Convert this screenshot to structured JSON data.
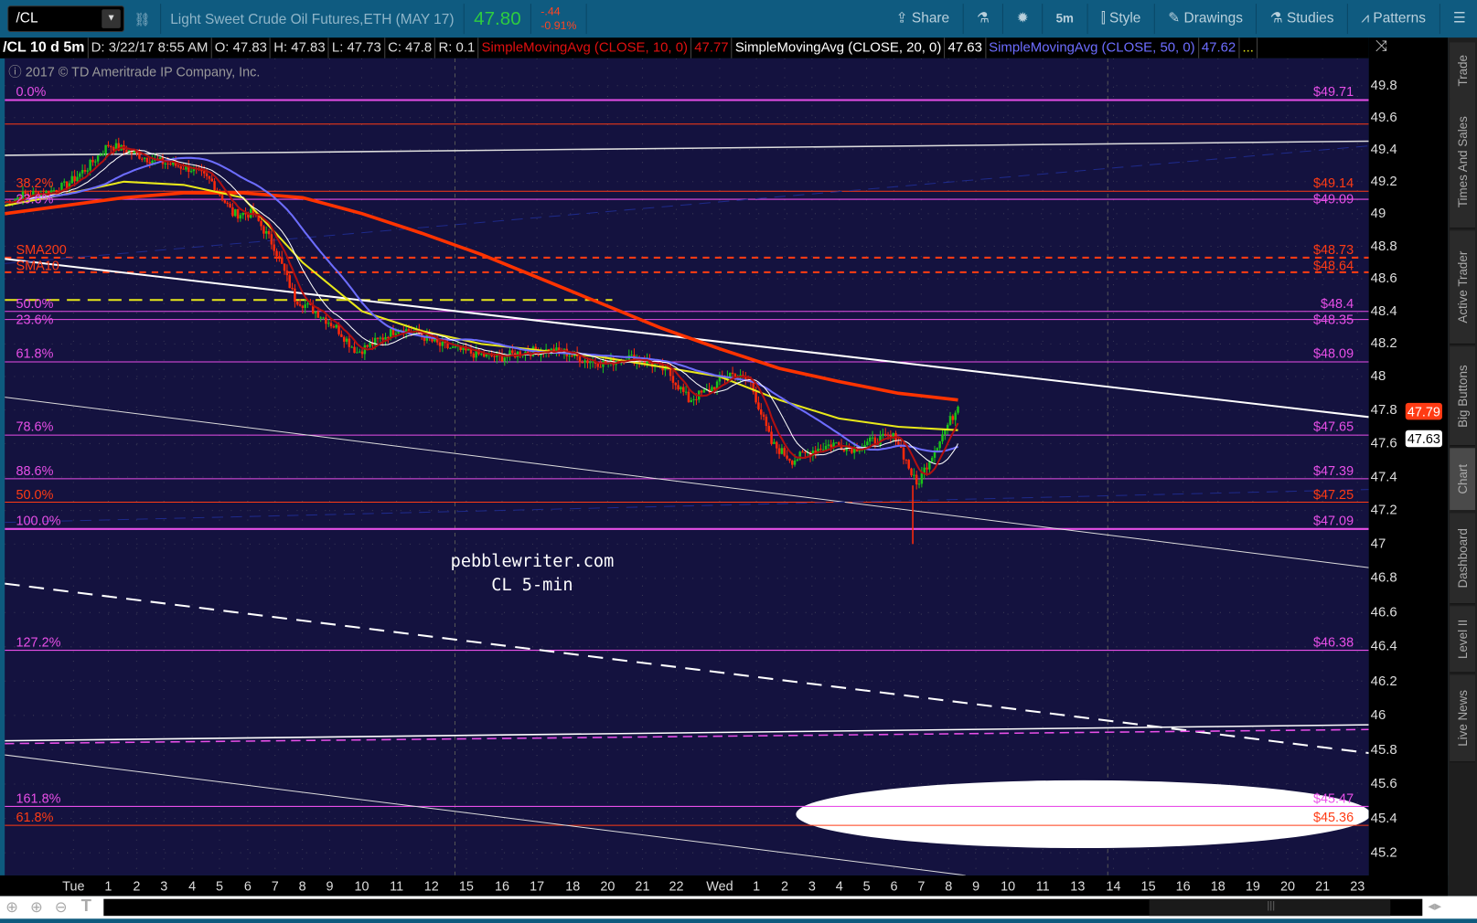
{
  "toolbar": {
    "symbol": "/CL",
    "description": "Light Sweet Crude Oil Futures,ETH (MAY 17)",
    "last": "47.80",
    "change": "-.44",
    "change_pct": "-0.91%",
    "buttons": [
      {
        "label": "Share",
        "icon": "share-icon"
      },
      {
        "label": "",
        "icon": "flask-icon"
      },
      {
        "label": "",
        "icon": "gear-icon"
      },
      {
        "label": "5m",
        "icon": ""
      },
      {
        "label": "Style",
        "icon": "candlestick-icon"
      },
      {
        "label": "Drawings",
        "icon": "pencil-icon"
      },
      {
        "label": "Studies",
        "icon": "flask-icon"
      },
      {
        "label": "Patterns",
        "icon": "patterns-icon"
      },
      {
        "label": "",
        "icon": "menu-icon"
      }
    ]
  },
  "info": {
    "title": "/CL 10 d 5m",
    "date": "D: 3/22/17 8:55 AM",
    "open": "O: 47.83",
    "high": "H: 47.83",
    "low": "L: 47.73",
    "close": "C: 47.8",
    "range": "R: 0.1",
    "sma10_label": "SimpleMovingAvg (CLOSE, 10, 0)",
    "sma10_value": "47.77",
    "sma20_label": "SimpleMovingAvg (CLOSE, 20, 0)",
    "sma20_value": "47.63",
    "sma50_label": "SimpleMovingAvg (CLOSE, 50, 0)",
    "sma50_value": "47.62",
    "more": "..."
  },
  "copyright": "2017 © TD Ameritrade IP Company, Inc.",
  "watermark": {
    "line1": "pebblewriter.com",
    "line2": "CL 5-min"
  },
  "colors": {
    "magenta": "#e84fe8",
    "orange": "#ff3b14",
    "yellow": "#e8e81a",
    "sma50": "#6d6dff",
    "sma200": "#ff3300",
    "sma10": "#b01010",
    "up": "#19c219",
    "down": "#ff2a0a",
    "bg": "#14123f"
  },
  "sidebar": [
    "Trade",
    "Times And Sales",
    "Active Trader",
    "Big Buttons",
    "Chart",
    "Dashboard",
    "Level II",
    "Live News"
  ],
  "sidebar_active": "Chart",
  "chart_data": {
    "type": "candlestick",
    "symbol": "/CL",
    "interval": "5m",
    "y_ticks": [
      "49.8",
      "49.6",
      "49.4",
      "49.2",
      "49",
      "48.8",
      "48.6",
      "48.4",
      "48.2",
      "48",
      "47.8",
      "47.6",
      "47.4",
      "47.2",
      "47",
      "46.8",
      "46.6",
      "46.4",
      "46.2",
      "46",
      "45.8",
      "45.6",
      "45.4",
      "45.2"
    ],
    "ylim": [
      45.1,
      49.9
    ],
    "x_ticks": [
      "Tue",
      "1",
      "2",
      "3",
      "4",
      "5",
      "6",
      "7",
      "8",
      "9",
      "10",
      "11",
      "12",
      "15",
      "16",
      "17",
      "18",
      "20",
      "21",
      "22",
      "Wed",
      "1",
      "2",
      "3",
      "4",
      "5",
      "6",
      "7",
      "8",
      "9",
      "10",
      "11",
      "13",
      "14",
      "15",
      "16",
      "18",
      "19",
      "20",
      "21",
      "23"
    ],
    "close_path": [
      49.07,
      49.12,
      49.13,
      49.18,
      49.29,
      49.43,
      49.39,
      49.34,
      49.31,
      49.28,
      49.2,
      49.0,
      49.0,
      48.8,
      48.48,
      48.4,
      48.3,
      48.15,
      48.22,
      48.3,
      48.26,
      48.19,
      48.16,
      48.13,
      48.12,
      48.15,
      48.16,
      48.15,
      48.1,
      48.08,
      48.12,
      48.09,
      48.03,
      47.86,
      47.92,
      48.02,
      47.96,
      47.6,
      47.5,
      47.56,
      47.6,
      47.57,
      47.62,
      47.64,
      47.35,
      47.6,
      47.82
    ],
    "session_low": 47.0,
    "sma100_path": [
      49.05,
      49.12,
      49.2,
      49.18,
      49.1,
      48.7,
      48.4,
      48.28,
      48.2,
      48.16,
      48.12,
      48.06,
      48.0,
      47.86,
      47.75,
      47.7,
      47.68
    ],
    "sma200_path": [
      49.0,
      49.05,
      49.1,
      49.13,
      49.13,
      49.1,
      49.0,
      48.88,
      48.75,
      48.6,
      48.45,
      48.3,
      48.17,
      48.05,
      47.97,
      47.9,
      47.86
    ],
    "current_badges": [
      {
        "value": "47.79",
        "color": "#ff3b14"
      },
      {
        "value": "47.63",
        "color": "#ffffff"
      }
    ],
    "levels": [
      {
        "price": 49.71,
        "color": "#e84fe8",
        "left": "0.0%",
        "right": "$49.71",
        "width": 2
      },
      {
        "price": 49.56,
        "color": "#ff3b14",
        "left": "",
        "right": "",
        "width": 1
      },
      {
        "price": 49.14,
        "color": "#ff3b14",
        "left": "38.2%",
        "right": "$49.14",
        "width": 1
      },
      {
        "price": 49.09,
        "color": "#e84fe8",
        "left": "23.6%",
        "right": "$49.09",
        "width": 1
      },
      {
        "price": 48.73,
        "color": "#ff3b14",
        "left": "SMA200",
        "right": "$48.73",
        "width": 2,
        "dash": true
      },
      {
        "price": 48.64,
        "color": "#ff3b14",
        "left": "SMA10",
        "right": "$48.64",
        "width": 2,
        "dash": true
      },
      {
        "price": 48.4,
        "color": "#e84fe8",
        "left": "50.0%",
        "right": "$48.4",
        "width": 1
      },
      {
        "price": 48.35,
        "color": "#e84fe8",
        "left": "23.6%",
        "right": "$48.35",
        "width": 1
      },
      {
        "price": 48.09,
        "color": "#e84fe8",
        "left": "61.8%",
        "right": "$48.09",
        "width": 1
      },
      {
        "price": 47.65,
        "color": "#e84fe8",
        "left": "78.6%",
        "right": "$47.65",
        "width": 1
      },
      {
        "price": 47.39,
        "color": "#e84fe8",
        "left": "88.6%",
        "right": "$47.39",
        "width": 1
      },
      {
        "price": 47.25,
        "color": "#ff3b14",
        "left": "50.0%",
        "right": "$47.25",
        "width": 1
      },
      {
        "price": 47.09,
        "color": "#e84fe8",
        "left": "100.0%",
        "right": "$47.09",
        "width": 2
      },
      {
        "price": 46.38,
        "color": "#e84fe8",
        "left": "127.2%",
        "right": "$46.38",
        "width": 1
      },
      {
        "price": 45.47,
        "color": "#e84fe8",
        "left": "161.8%",
        "right": "$45.47",
        "width": 1
      },
      {
        "price": 45.36,
        "color": "#ff3b14",
        "left": "61.8%",
        "right": "$45.36",
        "width": 1
      }
    ],
    "yellow_dashed_level": 48.47
  }
}
